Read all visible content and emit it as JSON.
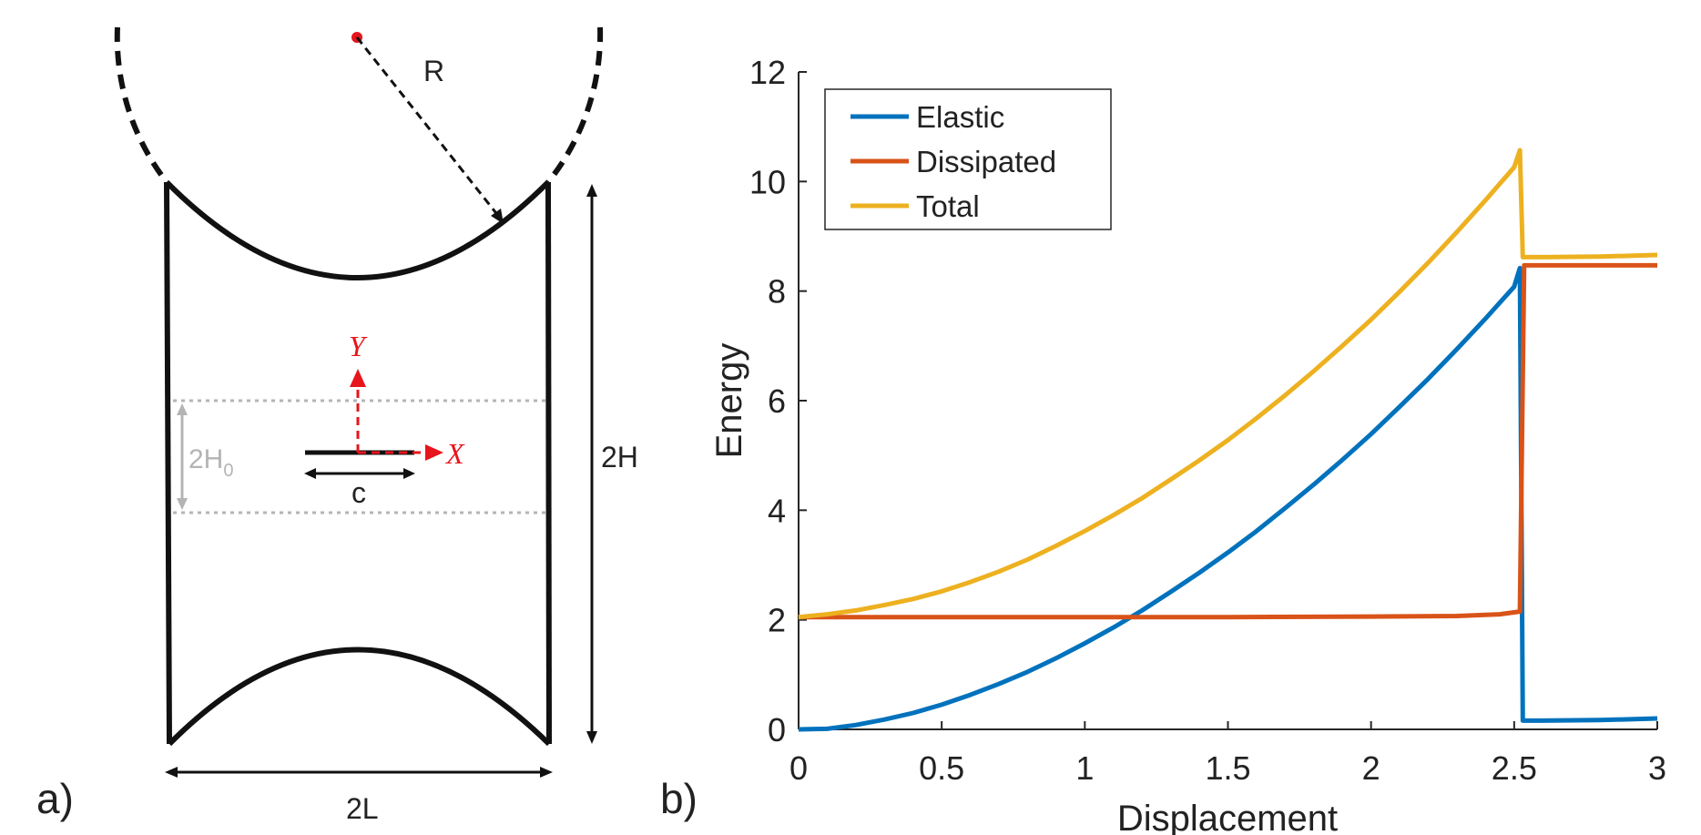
{
  "panel_a": {
    "label": "a)",
    "labels": {
      "R": "R",
      "Y": "Y",
      "X": "X",
      "c": "c",
      "twoH0_main": "2H",
      "twoH0_sub": "0",
      "twoH": "2H",
      "twoL": "2L"
    },
    "colors": {
      "outline": "#111111",
      "axes": "#e8141b",
      "guide": "#b4b4b4"
    }
  },
  "panel_b": {
    "label": "b)"
  },
  "chart_data": {
    "type": "line",
    "xlabel": "Displacement",
    "ylabel": "Energy",
    "xlim": [
      0,
      3
    ],
    "ylim": [
      0,
      12
    ],
    "xticks": [
      0,
      0.5,
      1,
      1.5,
      2,
      2.5,
      3
    ],
    "xtick_labels": [
      "0",
      "0.5",
      "1",
      "1.5",
      "2",
      "2.5",
      "3"
    ],
    "yticks": [
      0,
      2,
      4,
      6,
      8,
      10,
      12
    ],
    "ytick_labels": [
      "0",
      "2",
      "4",
      "6",
      "8",
      "10",
      "12"
    ],
    "grid": false,
    "legend_position": "top-left",
    "series": [
      {
        "name": "Elastic",
        "color": "#0072BD",
        "x": [
          0,
          0.1,
          0.2,
          0.3,
          0.4,
          0.5,
          0.6,
          0.7,
          0.8,
          0.9,
          1.0,
          1.1,
          1.2,
          1.3,
          1.4,
          1.5,
          1.6,
          1.7,
          1.8,
          1.9,
          2.0,
          2.1,
          2.2,
          2.3,
          2.4,
          2.5,
          2.52,
          2.53,
          2.6,
          2.8,
          3.0
        ],
        "y": [
          0,
          0.01,
          0.08,
          0.18,
          0.3,
          0.45,
          0.63,
          0.83,
          1.05,
          1.3,
          1.57,
          1.86,
          2.17,
          2.51,
          2.86,
          3.23,
          3.62,
          4.04,
          4.47,
          4.92,
          5.39,
          5.89,
          6.4,
          6.94,
          7.5,
          8.08,
          8.42,
          0.16,
          0.16,
          0.17,
          0.2
        ]
      },
      {
        "name": "Dissipated",
        "color": "#D95319",
        "x": [
          0,
          0.5,
          1.0,
          1.5,
          2.0,
          2.3,
          2.45,
          2.52,
          2.535,
          2.6,
          3.0
        ],
        "y": [
          2.05,
          2.05,
          2.05,
          2.05,
          2.06,
          2.07,
          2.1,
          2.15,
          8.47,
          8.47,
          8.47
        ]
      },
      {
        "name": "Total",
        "color": "#EDB120",
        "x": [
          0,
          0.1,
          0.2,
          0.3,
          0.4,
          0.5,
          0.6,
          0.7,
          0.8,
          0.9,
          1.0,
          1.1,
          1.2,
          1.3,
          1.4,
          1.5,
          1.6,
          1.7,
          1.8,
          1.9,
          2.0,
          2.1,
          2.2,
          2.3,
          2.4,
          2.5,
          2.52,
          2.53,
          2.6,
          2.8,
          3.0
        ],
        "y": [
          2.05,
          2.1,
          2.17,
          2.27,
          2.38,
          2.52,
          2.69,
          2.88,
          3.1,
          3.35,
          3.62,
          3.91,
          4.22,
          4.56,
          4.91,
          5.28,
          5.68,
          6.1,
          6.54,
          7.0,
          7.48,
          7.99,
          8.52,
          9.08,
          9.66,
          10.26,
          10.57,
          8.62,
          8.62,
          8.63,
          8.66
        ]
      }
    ]
  }
}
